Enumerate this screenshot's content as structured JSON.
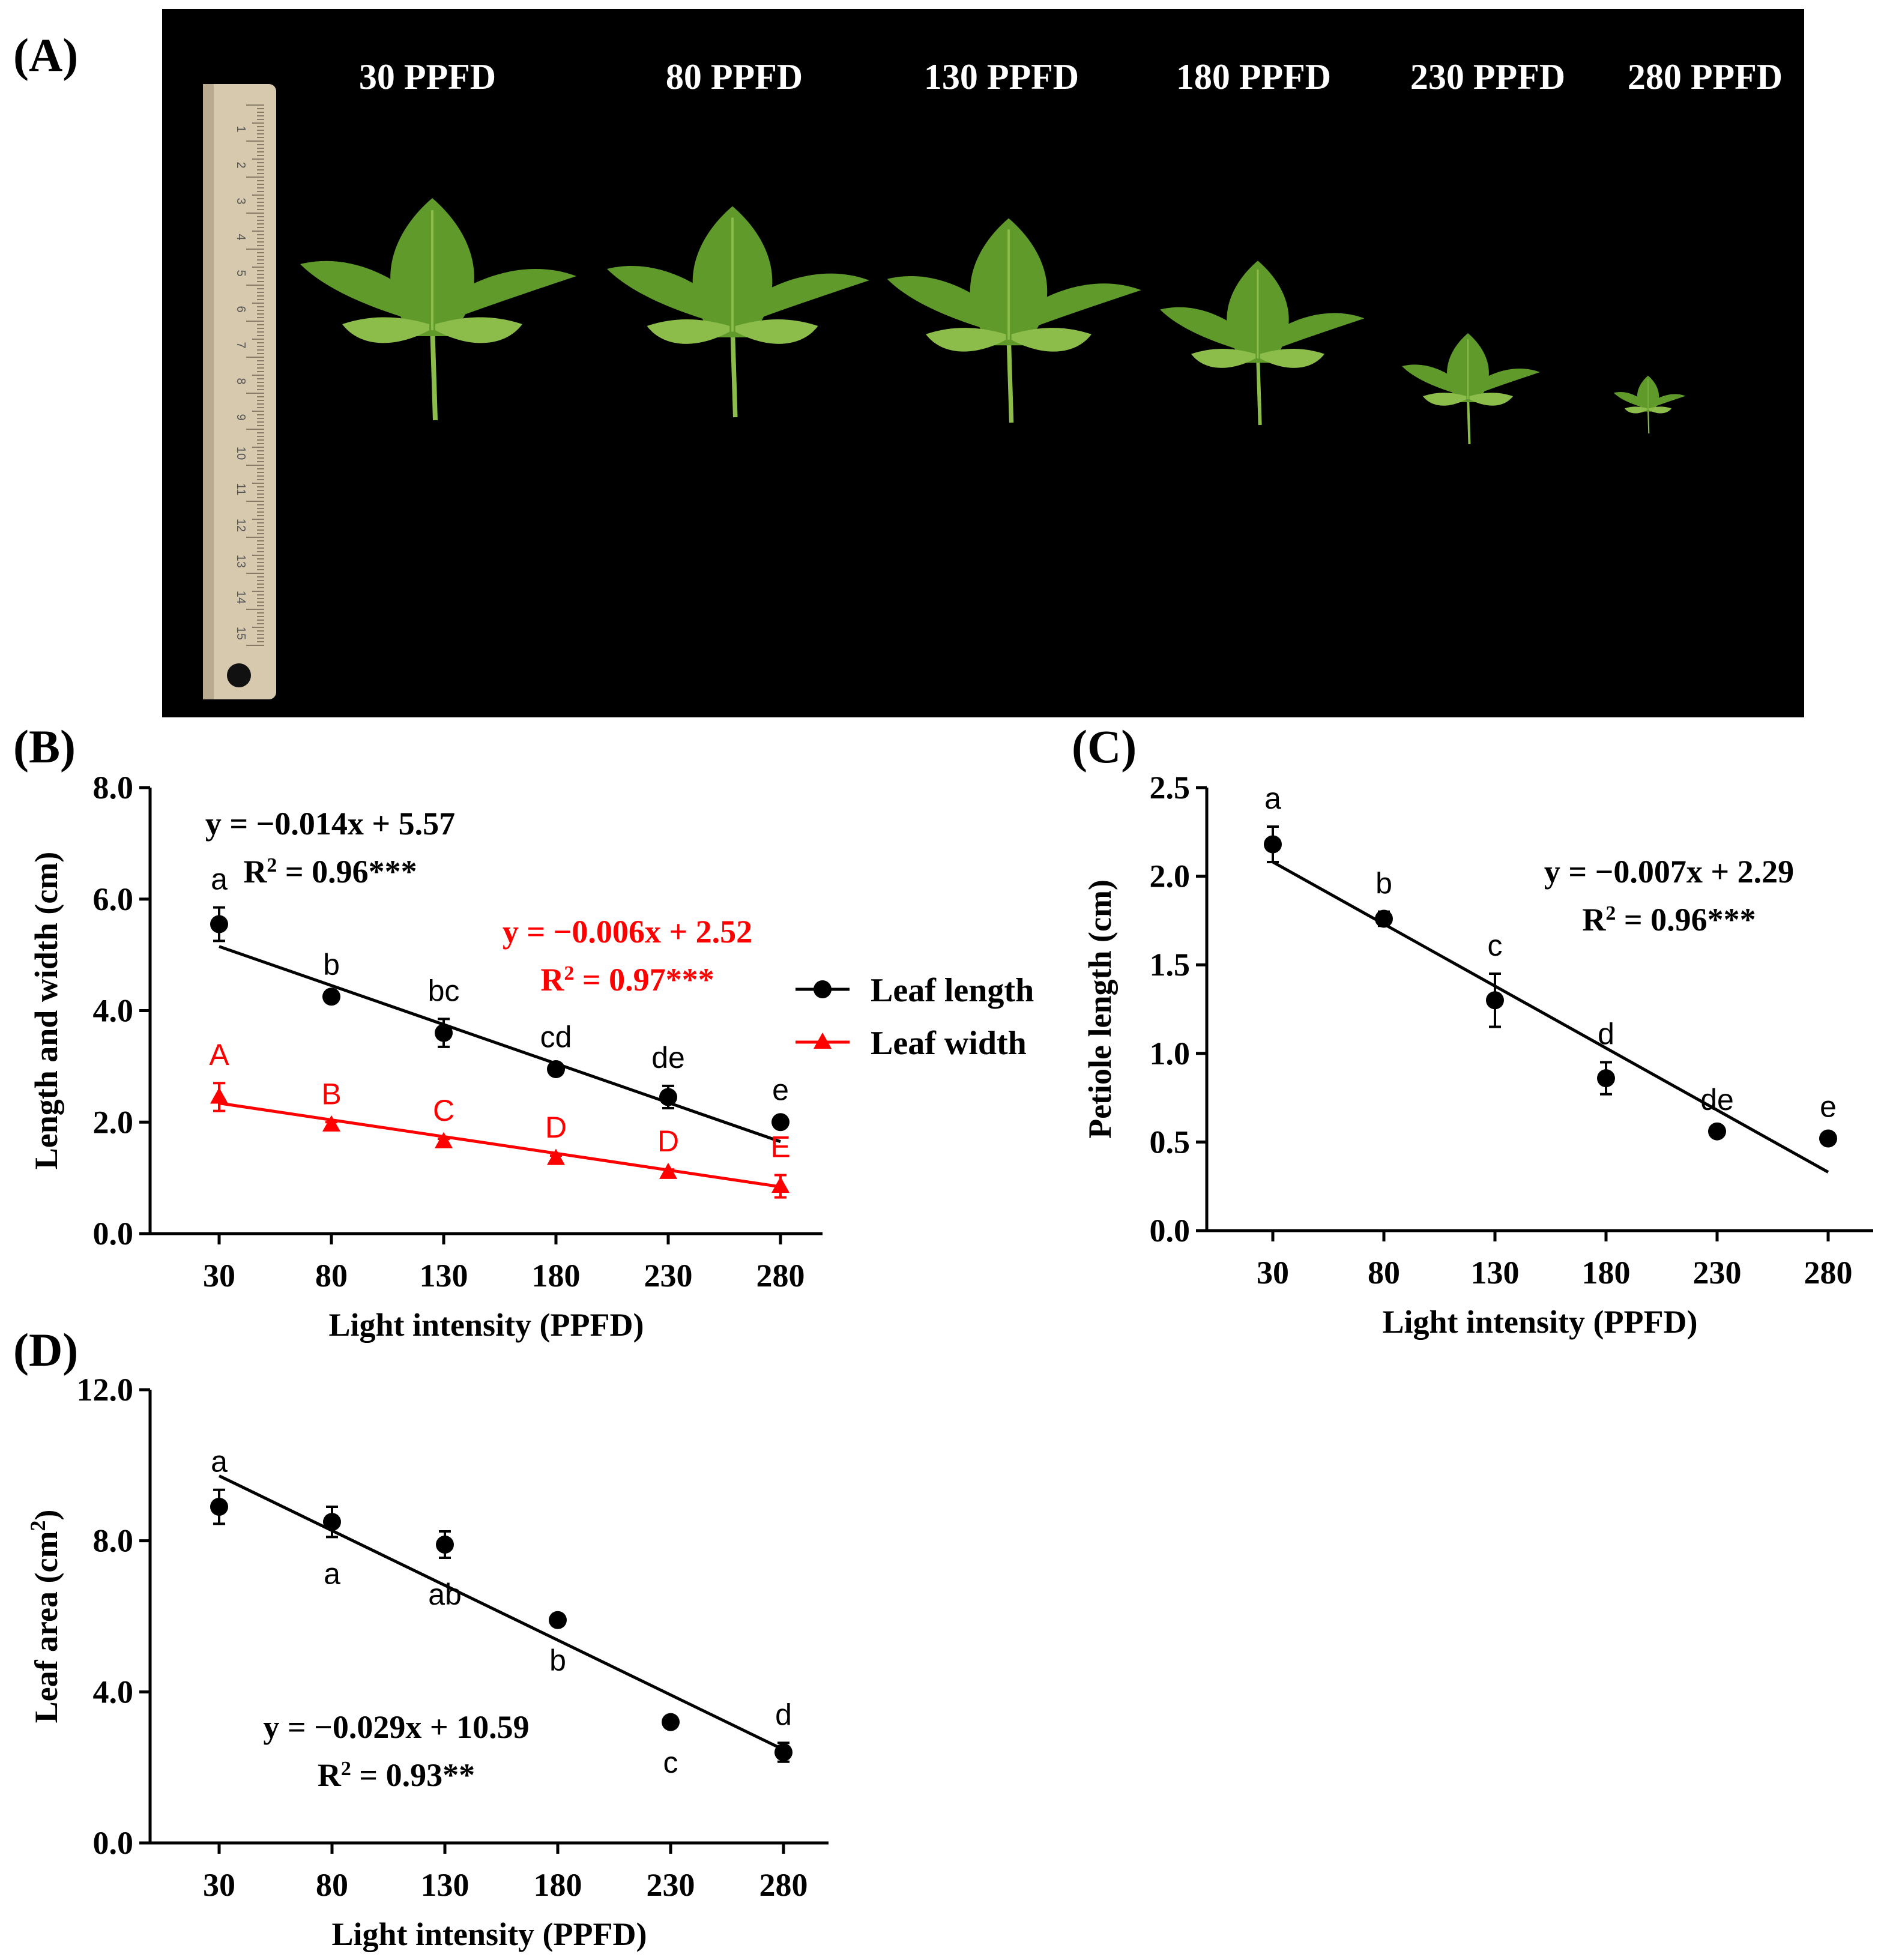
{
  "panel_labels": {
    "a": "(A)",
    "b": "(B)",
    "c": "(C)",
    "d": "(D)"
  },
  "photo": {
    "ppfd_labels": [
      "30 PPFD",
      "80 PPFD",
      "130 PPFD",
      "180 PPFD",
      "230 PPFD",
      "280 PPFD"
    ],
    "ruler_numbers": [
      "1",
      "2",
      "3",
      "4",
      "5",
      "6",
      "7",
      "8",
      "9",
      "10",
      "11",
      "12",
      "13",
      "14",
      "15"
    ],
    "colors": {
      "background": "#000000",
      "leaf": "#5f9a2a",
      "leaf_light": "#8cbd4a"
    }
  },
  "chart_data": [
    {
      "type": "scatter",
      "panel": "B",
      "xlabel": "Light intensity (PPFD)",
      "ylabel": "Length and width (cm)",
      "x": [
        30,
        80,
        130,
        180,
        230,
        280
      ],
      "x_ticks": [
        "30",
        "80",
        "130",
        "180",
        "230",
        "280"
      ],
      "y_ticks": [
        "0.0",
        "2.0",
        "4.0",
        "6.0",
        "8.0"
      ],
      "ylim": [
        0,
        8
      ],
      "series": [
        {
          "name": "Leaf length",
          "marker": "circle",
          "color": "#000000",
          "values": [
            5.55,
            4.25,
            3.6,
            2.95,
            2.45,
            2.0
          ],
          "errors": [
            0.3,
            0.07,
            0.25,
            0.07,
            0.2,
            0.07
          ],
          "letters": [
            "a",
            "b",
            "bc",
            "cd",
            "de",
            "e"
          ],
          "fit": {
            "slope": -0.014,
            "intercept": 5.57
          },
          "equation": "y = −0.014x + 5.57",
          "r2": "R",
          "r2_value": " = 0.96***"
        },
        {
          "name": "Leaf width",
          "marker": "triangle",
          "color": "#ff0000",
          "values": [
            2.45,
            1.95,
            1.65,
            1.35,
            1.1,
            0.85
          ],
          "errors": [
            0.25,
            0.05,
            0.05,
            0.05,
            0.05,
            0.2
          ],
          "letters": [
            "A",
            "B",
            "C",
            "D",
            "D",
            "E"
          ],
          "fit": {
            "slope": -0.006,
            "intercept": 2.52
          },
          "equation": "y = −0.006x + 2.52",
          "r2": "R",
          "r2_value": " = 0.97***"
        }
      ],
      "legend": "right"
    },
    {
      "type": "scatter",
      "panel": "C",
      "xlabel": "Light intensity (PPFD)",
      "ylabel": "Petiole length (cm)",
      "x": [
        30,
        80,
        130,
        180,
        230,
        280
      ],
      "x_ticks": [
        "30",
        "80",
        "130",
        "180",
        "230",
        "280"
      ],
      "y_ticks": [
        "0.0",
        "0.5",
        "1.0",
        "1.5",
        "2.0",
        "2.5"
      ],
      "ylim": [
        0,
        2.5
      ],
      "series": [
        {
          "marker": "circle",
          "color": "#000000",
          "values": [
            2.18,
            1.76,
            1.3,
            0.86,
            0.56,
            0.52
          ],
          "errors": [
            0.1,
            0.04,
            0.15,
            0.09,
            0.02,
            0.02
          ],
          "letters": [
            "a",
            "b",
            "c",
            "d",
            "de",
            "e"
          ],
          "fit": {
            "slope": -0.007,
            "intercept": 2.29
          },
          "equation": "y = −0.007x + 2.29",
          "r2": "R",
          "r2_value": " = 0.96***"
        }
      ]
    },
    {
      "type": "scatter",
      "panel": "D",
      "xlabel": "Light intensity (PPFD)",
      "ylabel": "Leaf area (cm",
      "ylabel_sup": "2",
      "ylabel_end": ")",
      "x": [
        30,
        80,
        130,
        180,
        230,
        280
      ],
      "x_ticks": [
        "30",
        "80",
        "130",
        "180",
        "230",
        "280"
      ],
      "y_ticks": [
        "0.0",
        "4.0",
        "8.0",
        "12.0"
      ],
      "ylim": [
        0,
        12
      ],
      "series": [
        {
          "marker": "circle",
          "color": "#000000",
          "values": [
            8.9,
            8.5,
            7.9,
            5.9,
            3.2,
            2.4
          ],
          "errors": [
            0.45,
            0.4,
            0.35,
            0.1,
            0.1,
            0.25
          ],
          "letters": [
            "a",
            "a",
            "ab",
            "b",
            "c",
            "d"
          ],
          "letter_pos": [
            "above",
            "below",
            "below",
            "below",
            "below",
            "above"
          ],
          "fit": {
            "slope": -0.029,
            "intercept": 10.59
          },
          "equation": "y = −0.029x + 10.59",
          "r2": "R",
          "r2_value": " = 0.93**"
        }
      ]
    }
  ]
}
